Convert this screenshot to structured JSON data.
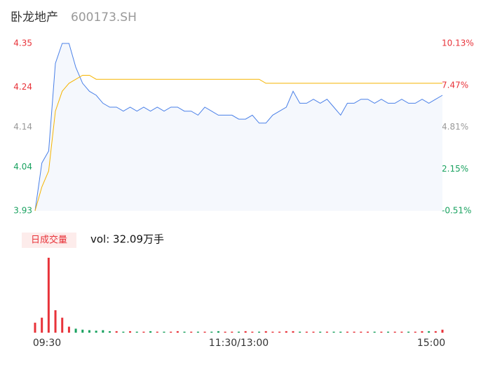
{
  "header": {
    "name": "卧龙地产",
    "code": "600173.SH"
  },
  "chart_data": [
    {
      "type": "line",
      "categories": [
        "09:30",
        null,
        null,
        null,
        null,
        null,
        null,
        null,
        null,
        null,
        null,
        null,
        null,
        null,
        null,
        null,
        null,
        null,
        null,
        null,
        null,
        null,
        null,
        null,
        null,
        null,
        null,
        null,
        null,
        null,
        "11:30/13:00",
        null,
        null,
        null,
        null,
        null,
        null,
        null,
        null,
        null,
        null,
        null,
        null,
        null,
        null,
        null,
        null,
        null,
        null,
        null,
        null,
        null,
        null,
        null,
        null,
        null,
        null,
        null,
        null,
        null,
        "15:00"
      ],
      "series": [
        {
          "name": "price",
          "color": "#4a80e8",
          "values": [
            3.93,
            4.05,
            4.08,
            4.3,
            4.35,
            4.35,
            4.29,
            4.25,
            4.23,
            4.22,
            4.2,
            4.19,
            4.19,
            4.18,
            4.19,
            4.18,
            4.19,
            4.18,
            4.19,
            4.18,
            4.19,
            4.19,
            4.18,
            4.18,
            4.17,
            4.19,
            4.18,
            4.17,
            4.17,
            4.17,
            4.16,
            4.16,
            4.17,
            4.15,
            4.15,
            4.17,
            4.18,
            4.19,
            4.23,
            4.2,
            4.2,
            4.21,
            4.2,
            4.21,
            4.19,
            4.17,
            4.2,
            4.2,
            4.21,
            4.21,
            4.2,
            4.21,
            4.2,
            4.2,
            4.21,
            4.2,
            4.2,
            4.21,
            4.2,
            4.21,
            4.22
          ]
        },
        {
          "name": "average",
          "color": "#f5b400",
          "values": [
            3.93,
            3.99,
            4.03,
            4.18,
            4.23,
            4.25,
            4.26,
            4.27,
            4.27,
            4.26,
            4.26,
            4.26,
            4.26,
            4.26,
            4.26,
            4.26,
            4.26,
            4.26,
            4.26,
            4.26,
            4.26,
            4.26,
            4.26,
            4.26,
            4.26,
            4.26,
            4.26,
            4.26,
            4.26,
            4.26,
            4.26,
            4.26,
            4.26,
            4.26,
            4.25,
            4.25,
            4.25,
            4.25,
            4.25,
            4.25,
            4.25,
            4.25,
            4.25,
            4.25,
            4.25,
            4.25,
            4.25,
            4.25,
            4.25,
            4.25,
            4.25,
            4.25,
            4.25,
            4.25,
            4.25,
            4.25,
            4.25,
            4.25,
            4.25,
            4.25,
            4.25
          ]
        }
      ],
      "ylim": [
        3.93,
        4.35
      ],
      "yticks": [
        4.35,
        4.24,
        4.14,
        4.04,
        3.93
      ],
      "y2lim": [
        -0.51,
        10.13
      ],
      "y2ticks": [
        {
          "value": 10.13,
          "label": "10.13%"
        },
        {
          "value": 7.47,
          "label": "7.47%"
        },
        {
          "value": 4.81,
          "label": "4.81%"
        },
        {
          "value": 2.15,
          "label": "2.15%"
        },
        {
          "value": -0.51,
          "label": "-0.51%"
        }
      ]
    },
    {
      "type": "bar",
      "title": "日成交量",
      "annotation": "vol: 32.09万手",
      "up_color": "#e8333a",
      "down_color": "#1aa260",
      "values": [
        0.2,
        0.3,
        1.5,
        0.45,
        0.3,
        0.12,
        0.08,
        0.06,
        0.05,
        0.04,
        0.05,
        0.03,
        0.03,
        0.02,
        0.03,
        0.02,
        0.02,
        0.03,
        0.02,
        0.02,
        0.02,
        0.03,
        0.02,
        0.02,
        0.02,
        0.02,
        0.02,
        0.03,
        0.02,
        0.02,
        0.02,
        0.03,
        0.02,
        0.02,
        0.03,
        0.02,
        0.02,
        0.03,
        0.03,
        0.02,
        0.02,
        0.02,
        0.02,
        0.02,
        0.02,
        0.02,
        0.02,
        0.02,
        0.02,
        0.02,
        0.02,
        0.02,
        0.02,
        0.02,
        0.02,
        0.02,
        0.02,
        0.03,
        0.03,
        0.03,
        0.06
      ],
      "ylim": [
        0,
        1.5
      ]
    }
  ]
}
